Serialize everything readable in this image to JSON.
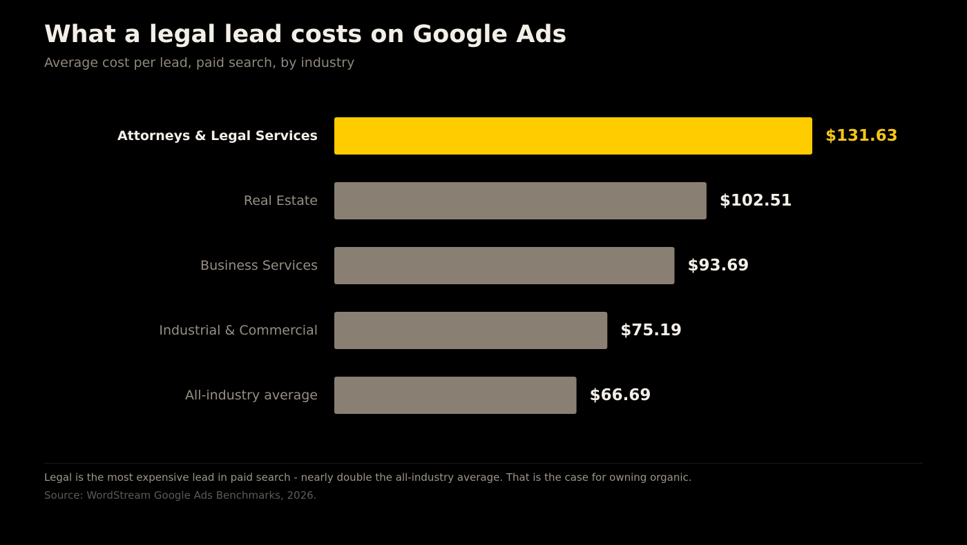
{
  "header": {
    "title": "What a legal lead costs on Google Ads",
    "subtitle": "Average cost per lead, paid search, by industry"
  },
  "footer": {
    "note": "Legal is the most expensive lead in paid search - nearly double the all-industry average. That is the case for owning organic.",
    "source": "Source: WordStream Google Ads Benchmarks, 2026."
  },
  "colors": {
    "background": "#000000",
    "highlight_bar": "#ffcc00",
    "default_bar": "#898073",
    "highlight_label": "#f3efe8",
    "default_label": "#968f85",
    "value_label": "#f3efe8",
    "highlight_value": "#f5c518"
  },
  "chart_data": {
    "type": "bar",
    "orientation": "horizontal",
    "title": "What a legal lead costs on Google Ads",
    "subtitle": "Average cost per lead, paid search, by industry",
    "categories": [
      "Attorneys & Legal Services",
      "Real Estate",
      "Business Services",
      "Industrial & Commercial",
      "All-industry average"
    ],
    "values": [
      131.63,
      102.51,
      93.69,
      75.19,
      66.69
    ],
    "value_labels": [
      "$131.63",
      "$102.51",
      "$93.69",
      "$75.19",
      "$66.69"
    ],
    "highlight_index": 0,
    "xlim": [
      0,
      131.63
    ],
    "xlabel": "",
    "ylabel": "",
    "grid": false,
    "legend": "none"
  }
}
